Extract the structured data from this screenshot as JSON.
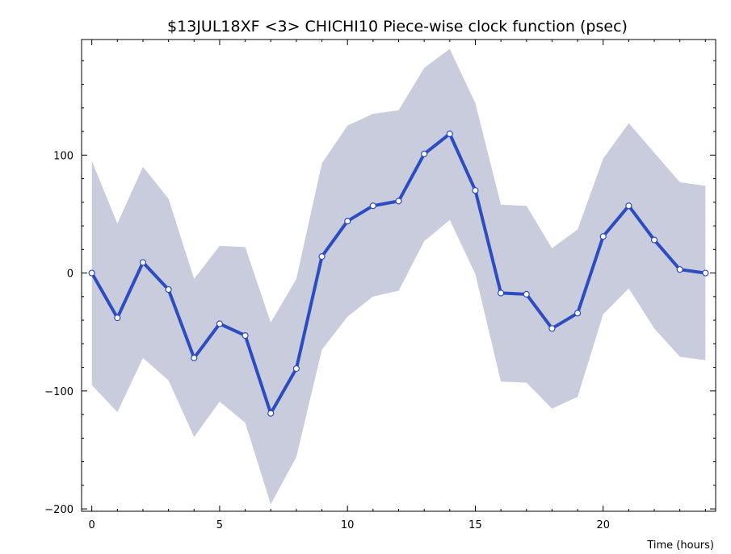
{
  "chart_data": {
    "type": "line",
    "title": "$13JUL18XF <3>  CHICHI10  Piece-wise clock function (psec)",
    "xlabel": "Time (hours)",
    "ylabel": "",
    "xlim": [
      -0.4,
      24.4
    ],
    "ylim": [
      -202,
      198
    ],
    "x_ticks": [
      0,
      5,
      10,
      15,
      20
    ],
    "y_ticks": [
      -200,
      -100,
      0,
      100
    ],
    "x_tick_labels": [
      "0",
      "5",
      "10",
      "15",
      "20"
    ],
    "y_tick_labels": [
      "−200",
      "−100",
      "0",
      "100"
    ],
    "grid": false,
    "colors": {
      "line": "#2d4cc0",
      "band": "#c8ccdc",
      "marker_fill": "#ffffff"
    },
    "series": [
      {
        "x": [
          0,
          1,
          2,
          3,
          4,
          5,
          6,
          7,
          8,
          9,
          10,
          11,
          12,
          13,
          14,
          15,
          16,
          17,
          18,
          19,
          20,
          21,
          22,
          23,
          24
        ],
        "values": [
          0,
          -38,
          9,
          -14,
          -72,
          -43,
          -53,
          -119,
          -81,
          14,
          44,
          57,
          61,
          101,
          118,
          70,
          -17,
          -18,
          -47,
          -34,
          31,
          57,
          28,
          3,
          0
        ],
        "upper": [
          95,
          42,
          90,
          63,
          -5,
          23,
          22,
          -42,
          -5,
          93,
          125,
          135,
          138,
          174,
          190,
          144,
          58,
          57,
          21,
          37,
          97,
          127,
          102,
          77,
          74
        ],
        "lower": [
          -95,
          -118,
          -72,
          -91,
          -139,
          -109,
          -127,
          -196,
          -156,
          -65,
          -37,
          -20,
          -15,
          27,
          45,
          -1,
          -92,
          -93,
          -115,
          -105,
          -35,
          -13,
          -47,
          -71,
          -74
        ]
      }
    ]
  }
}
